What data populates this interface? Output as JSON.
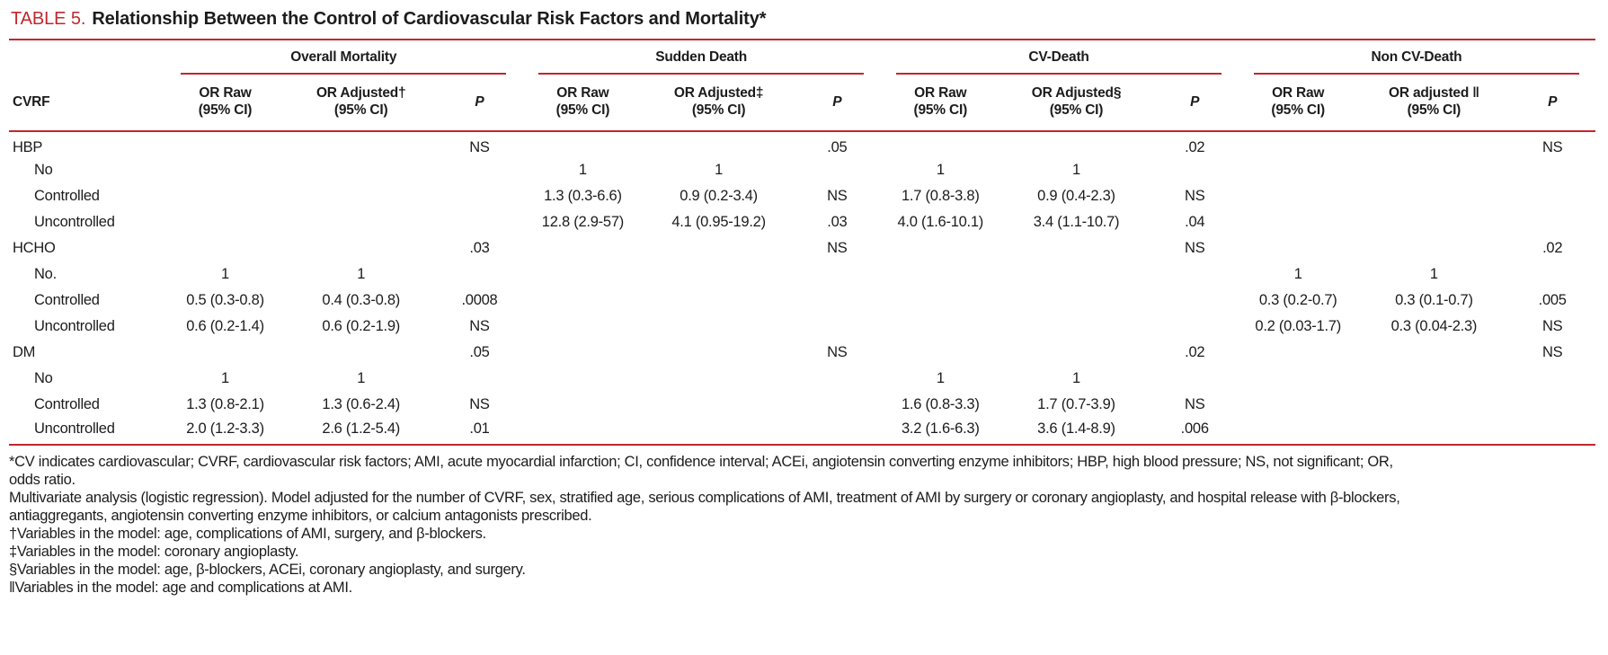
{
  "accent_color": "#c1272d",
  "title": {
    "label": "TABLE 5.",
    "text": "Relationship Between the Control of Cardiovascular Risk Factors and Mortality*"
  },
  "table": {
    "cvrf_header": "CVRF",
    "groups": [
      {
        "label": "Overall Mortality",
        "columns": [
          {
            "l1": "OR Raw",
            "l2": "(95% CI)"
          },
          {
            "l1": "OR Adjusted†",
            "l2": "(95% CI)"
          },
          {
            "l1": "P",
            "italic": true
          }
        ]
      },
      {
        "label": "Sudden Death",
        "columns": [
          {
            "l1": "OR Raw",
            "l2": "(95% CI)"
          },
          {
            "l1": "OR Adjusted‡",
            "l2": "(95% CI)"
          },
          {
            "l1": "P",
            "italic": true
          }
        ]
      },
      {
        "label": "CV-Death",
        "columns": [
          {
            "l1": "OR Raw",
            "l2": "(95% CI)"
          },
          {
            "l1": "OR Adjusted§",
            "l2": "(95% CI)"
          },
          {
            "l1": "P",
            "italic": true
          }
        ]
      },
      {
        "label": "Non CV-Death",
        "columns": [
          {
            "l1": "OR Raw",
            "l2": "(95% CI)"
          },
          {
            "l1": "OR adjusted ‖",
            "l2": "(95% CI)"
          },
          {
            "l1": "P",
            "italic": true
          }
        ]
      }
    ],
    "rows": [
      {
        "label": "HBP",
        "indent": false,
        "cells": [
          "",
          "",
          "NS",
          "",
          "",
          ".05",
          "",
          "",
          ".02",
          "",
          "",
          "NS"
        ]
      },
      {
        "label": "No",
        "indent": true,
        "cells": [
          "",
          "",
          "",
          "1",
          "1",
          "",
          "1",
          "1",
          "",
          "",
          "",
          ""
        ]
      },
      {
        "label": "Controlled",
        "indent": true,
        "cells": [
          "",
          "",
          "",
          "1.3 (0.3-6.6)",
          "0.9 (0.2-3.4)",
          "NS",
          "1.7 (0.8-3.8)",
          "0.9 (0.4-2.3)",
          "NS",
          "",
          "",
          ""
        ]
      },
      {
        "label": "Uncontrolled",
        "indent": true,
        "cells": [
          "",
          "",
          "",
          "12.8 (2.9-57)",
          "4.1 (0.95-19.2)",
          ".03",
          "4.0 (1.6-10.1)",
          "3.4 (1.1-10.7)",
          ".04",
          "",
          "",
          ""
        ]
      },
      {
        "label": "HCHO",
        "indent": false,
        "cells": [
          "",
          "",
          ".03",
          "",
          "",
          "NS",
          "",
          "",
          "NS",
          "",
          "",
          ".02"
        ]
      },
      {
        "label": "No.",
        "indent": true,
        "cells": [
          "1",
          "1",
          "",
          "",
          "",
          "",
          "",
          "",
          "",
          "1",
          "1",
          ""
        ]
      },
      {
        "label": "Controlled",
        "indent": true,
        "cells": [
          "0.5 (0.3-0.8)",
          "0.4 (0.3-0.8)",
          ".0008",
          "",
          "",
          "",
          "",
          "",
          "",
          "0.3 (0.2-0.7)",
          "0.3 (0.1-0.7)",
          ".005"
        ]
      },
      {
        "label": "Uncontrolled",
        "indent": true,
        "cells": [
          "0.6 (0.2-1.4)",
          "0.6 (0.2-1.9)",
          "NS",
          "",
          "",
          "",
          "",
          "",
          "",
          "0.2 (0.03-1.7)",
          "0.3 (0.04-2.3)",
          "NS"
        ]
      },
      {
        "label": "DM",
        "indent": false,
        "cells": [
          "",
          "",
          ".05",
          "",
          "",
          "NS",
          "",
          "",
          ".02",
          "",
          "",
          "NS"
        ]
      },
      {
        "label": "No",
        "indent": true,
        "cells": [
          "1",
          "1",
          "",
          "",
          "",
          "",
          "1",
          "1",
          "",
          "",
          "",
          ""
        ]
      },
      {
        "label": "Controlled",
        "indent": true,
        "cells": [
          "1.3 (0.8-2.1)",
          "1.3 (0.6-2.4)",
          "NS",
          "",
          "",
          "",
          "1.6 (0.8-3.3)",
          "1.7 (0.7-3.9)",
          "NS",
          "",
          "",
          ""
        ]
      },
      {
        "label": "Uncontrolled",
        "indent": true,
        "cells": [
          "2.0 (1.2-3.3)",
          "2.6 (1.2-5.4)",
          ".01",
          "",
          "",
          "",
          "3.2 (1.6-6.3)",
          "3.6 (1.4-8.9)",
          ".006",
          "",
          "",
          ""
        ]
      }
    ]
  },
  "footnotes": [
    "*CV indicates cardiovascular; CVRF, cardiovascular risk factors; AMI, acute myocardial infarction; CI, confidence interval; ACEi, angiotensin converting enzyme inhibitors; HBP, high blood pressure; NS, not significant; OR,",
    "odds ratio.",
    "Multivariate analysis (logistic regression). Model adjusted for the number of CVRF, sex, stratified age, serious complications of AMI, treatment of AMI by surgery or coronary angioplasty, and hospital release with β-blockers,",
    "antiaggregants, angiotensin converting enzyme inhibitors, or calcium antagonists prescribed.",
    "†Variables in the model: age, complications of AMI, surgery, and β-blockers.",
    "‡Variables in the model: coronary angioplasty.",
    "§Variables in the model: age, β-blockers, ACEi, coronary angioplasty, and surgery.",
    "‖Variables in the model: age and complications at AMI."
  ]
}
